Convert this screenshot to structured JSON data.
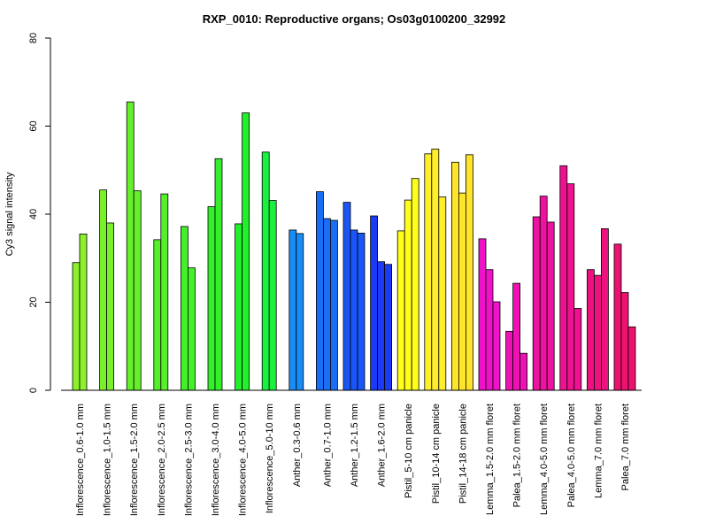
{
  "chart_data": {
    "type": "bar",
    "title": "RXP_0010: Reproductive organs; Os03g0100200_32992",
    "xlabel": "",
    "ylabel": "Cy3 signal intensity",
    "ylim": [
      0,
      80
    ],
    "yticks": [
      "0",
      "20",
      "40",
      "60",
      "80"
    ],
    "groups": [
      {
        "label": "Inflorescence_0.6-1.0 mm",
        "color": "#8cf02a",
        "values": [
          29,
          35.5
        ]
      },
      {
        "label": "Inflorescence_1.0-1.5 mm",
        "color": "#7af02a",
        "values": [
          45.5,
          38
        ]
      },
      {
        "label": "Inflorescence_1.5-2.0 mm",
        "color": "#66f02a",
        "values": [
          65.5,
          45.3
        ]
      },
      {
        "label": "Inflorescence_2.0-2.5 mm",
        "color": "#55f02a",
        "values": [
          34.2,
          44.6
        ]
      },
      {
        "label": "Inflorescence_2.5-3.0 mm",
        "color": "#44f02a",
        "values": [
          37.2,
          27.8
        ]
      },
      {
        "label": "Inflorescence_3.0-4.0 mm",
        "color": "#33f02a",
        "values": [
          41.7,
          52.6
        ]
      },
      {
        "label": "Inflorescence_4.0-5.0 mm",
        "color": "#22f02a",
        "values": [
          37.8,
          63
        ]
      },
      {
        "label": "Inflorescence_5.0-10 mm",
        "color": "#19f040",
        "values": [
          54.1,
          43.1
        ]
      },
      {
        "label": "Anther_0.3-0.6 mm",
        "color": "#1a8cf5",
        "values": [
          36.4,
          35.6
        ]
      },
      {
        "label": "Anther_0.7-1.0 mm",
        "color": "#1a6ef5",
        "values": [
          45.1,
          39,
          38.6
        ]
      },
      {
        "label": "Anther_1.2-1.5 mm",
        "color": "#1a55f5",
        "values": [
          42.7,
          36.4,
          35.7
        ]
      },
      {
        "label": "Anther_1.6-2.0 mm",
        "color": "#1a3af5",
        "values": [
          39.6,
          29.2,
          28.6
        ]
      },
      {
        "label": "Pistil_5-10 cm panicle",
        "color": "#ffff1a",
        "values": [
          36.2,
          43.2,
          48.1
        ]
      },
      {
        "label": "Pistil_10-14 cm panicle",
        "color": "#ffef2a",
        "values": [
          53.7,
          54.8,
          43.9
        ]
      },
      {
        "label": "Pistil_14-18 cm panicle",
        "color": "#ffe52a",
        "values": [
          51.8,
          44.8,
          53.5
        ]
      },
      {
        "label": "Lemma_1.5-2.0 mm floret",
        "color": "#ee12c8",
        "values": [
          34.4,
          27.4,
          20.1
        ]
      },
      {
        "label": "Palea_1.5-2.0 mm floret",
        "color": "#ee12b4",
        "values": [
          13.4,
          24.3,
          8.4
        ]
      },
      {
        "label": "Lemma_4.0-5.0 mm floret",
        "color": "#ee12a0",
        "values": [
          39.4,
          44.1,
          38.2
        ]
      },
      {
        "label": "Palea_4.0-5.0 mm floret",
        "color": "#ee1290",
        "values": [
          51,
          46.9,
          18.6
        ]
      },
      {
        "label": "Lemma_7.0 mm floret",
        "color": "#ee1280",
        "values": [
          27.4,
          26.1,
          36.7
        ]
      },
      {
        "label": "Palea_7.0 mm floret",
        "color": "#ee1270",
        "values": [
          33.2,
          22.2,
          14.4
        ]
      }
    ]
  }
}
